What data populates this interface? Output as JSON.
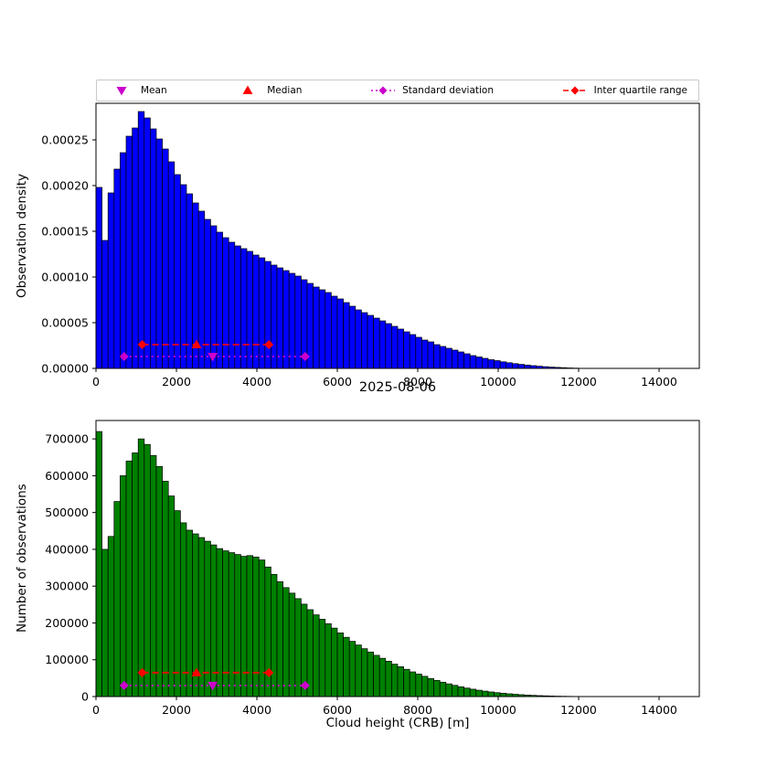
{
  "figure": {
    "title": "2025-08-06",
    "xlabel": "Cloud height (CRB) [m]",
    "background": "#ffffff",
    "legend": [
      {
        "label": "Mean",
        "marker": "triangle-down",
        "color": "#cc00cc",
        "line": "none"
      },
      {
        "label": "Median",
        "marker": "triangle-up",
        "color": "#ff0000",
        "line": "none"
      },
      {
        "label": "Standard deviation",
        "marker": "diamond",
        "color": "#cc00cc",
        "line": "dotted"
      },
      {
        "label": "Inter quartile range",
        "marker": "diamond",
        "color": "#ff0000",
        "line": "dashed"
      }
    ]
  },
  "chart_data": [
    {
      "type": "bar",
      "subtype": "histogram",
      "ylabel": "Observation density",
      "bar_color": "#0000ff",
      "bar_edge_color": "#000000",
      "bin_start": 0,
      "bin_width": 150,
      "xlim": [
        0,
        15000
      ],
      "ylim": [
        0,
        0.00029
      ],
      "grid": false,
      "xticks": {
        "values": [
          0,
          2000,
          4000,
          6000,
          8000,
          10000,
          12000,
          14000
        ],
        "labels": [
          "0",
          "2000",
          "4000",
          "6000",
          "8000",
          "10000",
          "12000",
          "14000"
        ]
      },
      "yticks": {
        "values": [
          0,
          5e-05,
          0.0001,
          0.00015,
          0.0002,
          0.00025
        ],
        "labels": [
          "0.00000",
          "0.00005",
          "0.00010",
          "0.00015",
          "0.00020",
          "0.00025"
        ]
      },
      "values": [
        0.000198,
        0.00014,
        0.000192,
        0.000218,
        0.000236,
        0.000254,
        0.000263,
        0.000281,
        0.000274,
        0.000262,
        0.000251,
        0.00024,
        0.000226,
        0.000212,
        0.000201,
        0.000191,
        0.000181,
        0.000172,
        0.000163,
        0.000156,
        0.000149,
        0.000143,
        0.000138,
        0.000134,
        0.000131,
        0.000128,
        0.000124,
        0.000121,
        0.000117,
        0.000113,
        0.00011,
        0.000107,
        0.000104,
        0.000101,
        9.7e-05,
        9.3e-05,
        8.9e-05,
        8.6e-05,
        8.3e-05,
        7.9e-05,
        7.6e-05,
        7.2e-05,
        6.8e-05,
        6.4e-05,
        6.1e-05,
        5.8e-05,
        5.5e-05,
        5.2e-05,
        4.9e-05,
        4.6e-05,
        4.3e-05,
        4e-05,
        3.7e-05,
        3.4e-05,
        3.1e-05,
        2.9e-05,
        2.6e-05,
        2.4e-05,
        2.2e-05,
        2e-05,
        1.8e-05,
        1.6e-05,
        1.4e-05,
        1.25e-05,
        1.1e-05,
        9.5e-06,
        8.5e-06,
        7.2e-06,
        6.2e-06,
        5.2e-06,
        4.4e-06,
        3.6e-06,
        3e-06,
        2.4e-06,
        1.9e-06,
        1.4e-06,
        1.1e-06,
        8e-07,
        5e-07,
        3e-07
      ],
      "stats": {
        "mean": 2900,
        "median": 2500,
        "q1": 1150,
        "q3": 4300,
        "std_low": 700,
        "std_high": 5200,
        "iqr_marker_y": 2.6e-05,
        "std_marker_y": 1.3e-05
      }
    },
    {
      "type": "bar",
      "subtype": "histogram",
      "ylabel": "Number of observations",
      "bar_color": "#008000",
      "bar_edge_color": "#000000",
      "bin_start": 0,
      "bin_width": 150,
      "xlim": [
        0,
        15000
      ],
      "ylim": [
        0,
        750000
      ],
      "grid": false,
      "xticks": {
        "values": [
          0,
          2000,
          4000,
          6000,
          8000,
          10000,
          12000,
          14000
        ],
        "labels": [
          "0",
          "2000",
          "4000",
          "6000",
          "8000",
          "10000",
          "12000",
          "14000"
        ]
      },
      "yticks": {
        "values": [
          0,
          100000,
          200000,
          300000,
          400000,
          500000,
          600000,
          700000
        ],
        "labels": [
          "0",
          "100000",
          "200000",
          "300000",
          "400000",
          "500000",
          "600000",
          "700000"
        ]
      },
      "values": [
        720000,
        400000,
        435000,
        530000,
        600000,
        640000,
        662000,
        700000,
        685000,
        655000,
        625000,
        585000,
        545000,
        505000,
        472000,
        452000,
        442000,
        432000,
        422000,
        412000,
        402000,
        396000,
        391000,
        386000,
        381000,
        383000,
        379000,
        371000,
        352000,
        332000,
        312000,
        296000,
        281000,
        266000,
        251000,
        236000,
        222000,
        210000,
        198000,
        186000,
        173000,
        161000,
        150000,
        140000,
        130000,
        121000,
        112000,
        104000,
        96000,
        88000,
        81000,
        74000,
        67000,
        61000,
        55000,
        49000,
        44000,
        39000,
        34500,
        30500,
        26500,
        23000,
        20000,
        17200,
        14700,
        12500,
        10600,
        9000,
        7500,
        6200,
        5100,
        4100,
        3300,
        2600,
        2000,
        1500,
        1100,
        800,
        550,
        300
      ],
      "stats": {
        "mean": 2900,
        "median": 2500,
        "q1": 1150,
        "q3": 4300,
        "std_low": 700,
        "std_high": 5200,
        "iqr_marker_y": 65000,
        "std_marker_y": 30000
      }
    }
  ]
}
